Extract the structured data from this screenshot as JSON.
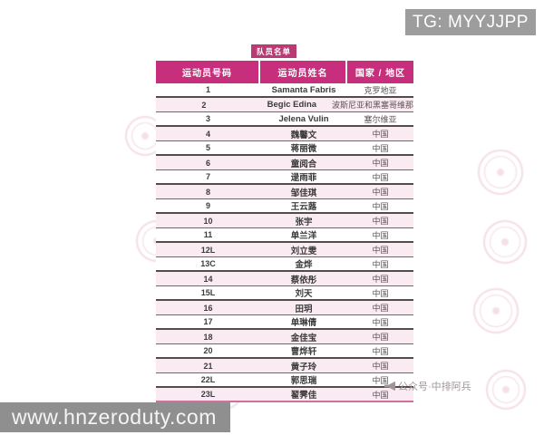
{
  "overlays": {
    "tg_badge": {
      "text": "TG: MYYJJPP",
      "bg": "#9d9d9d"
    },
    "site_badge": {
      "text": "www.hnzeroduty.com",
      "bg": "#8f8f8f"
    },
    "wechat_watermark": {
      "icon": "megaphone-icon",
      "text": "公众号·中排阿兵"
    }
  },
  "roster": {
    "title": "队员名单",
    "columns": [
      "运动员号码",
      "运动员姓名",
      "国家 / 地区"
    ],
    "colors": {
      "header_bg": "#c72f7d",
      "title_badge_bg": "#ba3a74",
      "stripe_row_bg": "#f9ebf1",
      "row_divider": "#5c5c5c",
      "stamp_pink": "#cd5f91"
    },
    "rows": [
      {
        "no": "1",
        "name": "Samanta Fabris",
        "country": "克罗地亚"
      },
      {
        "no": "2",
        "name": "Begic Edina",
        "country": "波斯尼亚和黑塞哥维那"
      },
      {
        "no": "3",
        "name": "Jelena Vulin",
        "country": "塞尔维亚"
      },
      {
        "no": "4",
        "name": "魏馨文",
        "country": "中国"
      },
      {
        "no": "5",
        "name": "蒋丽微",
        "country": "中国"
      },
      {
        "no": "6",
        "name": "童阅合",
        "country": "中国"
      },
      {
        "no": "7",
        "name": "逯雨菲",
        "country": "中国"
      },
      {
        "no": "8",
        "name": "邹佳琪",
        "country": "中国"
      },
      {
        "no": "9",
        "name": "王云蕗",
        "country": "中国"
      },
      {
        "no": "10",
        "name": "张宇",
        "country": "中国"
      },
      {
        "no": "11",
        "name": "单兰洋",
        "country": "中国"
      },
      {
        "no": "12L",
        "name": "刘立雯",
        "country": "中国"
      },
      {
        "no": "13C",
        "name": "金烨",
        "country": "中国"
      },
      {
        "no": "14",
        "name": "蔡依彤",
        "country": "中国"
      },
      {
        "no": "15L",
        "name": "刘天",
        "country": "中国"
      },
      {
        "no": "16",
        "name": "田玥",
        "country": "中国"
      },
      {
        "no": "17",
        "name": "单琳倩",
        "country": "中国"
      },
      {
        "no": "18",
        "name": "金佳宝",
        "country": "中国"
      },
      {
        "no": "20",
        "name": "曹烨轩",
        "country": "中国"
      },
      {
        "no": "21",
        "name": "黄子玲",
        "country": "中国"
      },
      {
        "no": "22L",
        "name": "郭思瑞",
        "country": "中国"
      },
      {
        "no": "23L",
        "name": "翟霁佳",
        "country": "中国"
      }
    ]
  }
}
